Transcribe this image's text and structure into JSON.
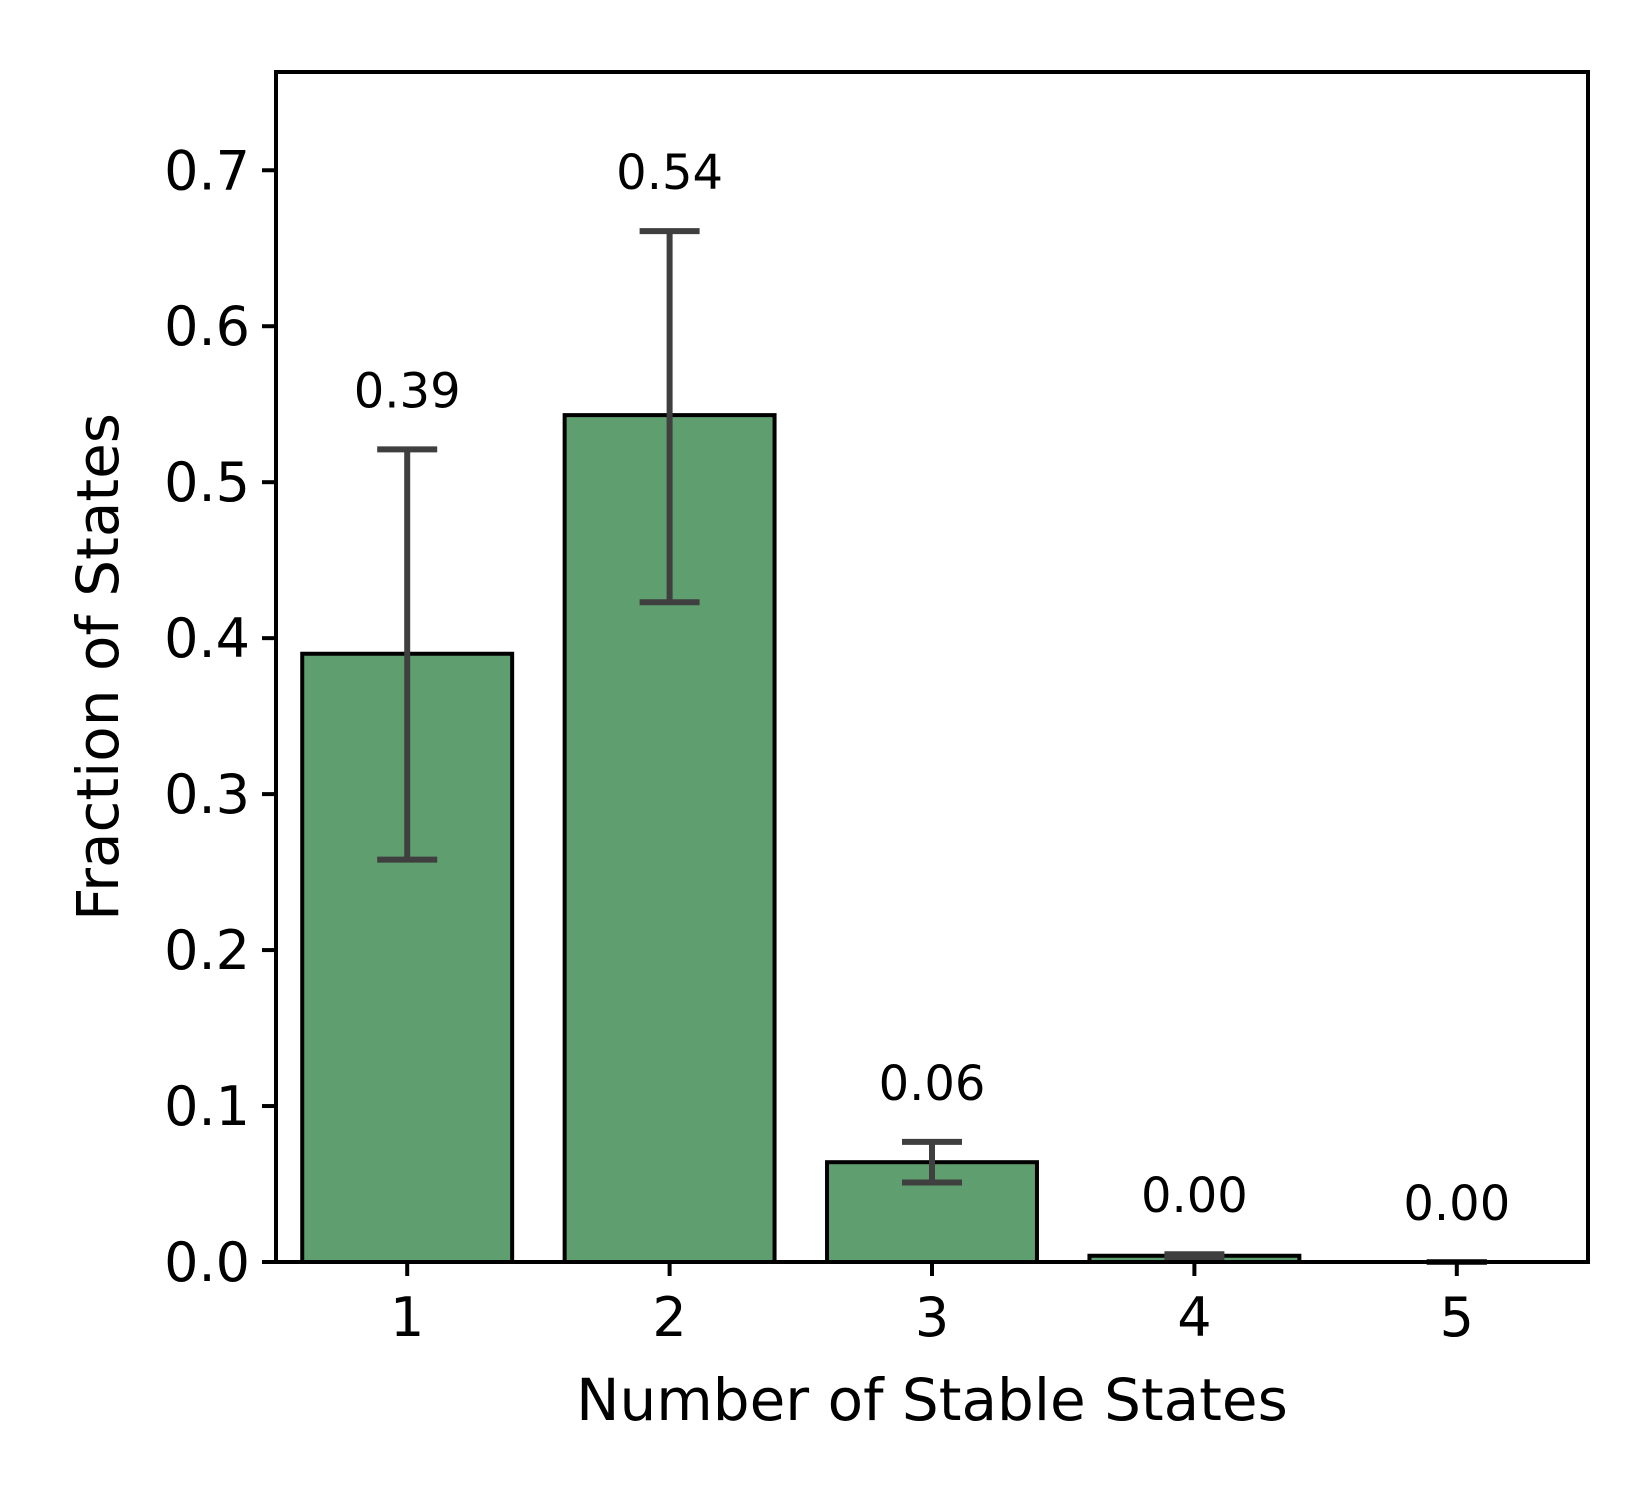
{
  "chart_data": {
    "type": "bar",
    "title": "",
    "xlabel": "Number of Stable States",
    "ylabel": "Fraction of States",
    "categories": [
      "1",
      "2",
      "3",
      "4",
      "5"
    ],
    "values": [
      0.39,
      0.543,
      0.064,
      0.004,
      0.0
    ],
    "error_low": [
      0.258,
      0.423,
      0.051,
      0.003,
      0.0
    ],
    "error_high": [
      0.521,
      0.661,
      0.077,
      0.005,
      0.0
    ],
    "data_labels": [
      "0.39",
      "0.54",
      "0.06",
      "0.00",
      "0.00"
    ],
    "ylim": [
      0,
      0.763
    ],
    "yticks": [
      "0.0",
      "0.1",
      "0.2",
      "0.3",
      "0.4",
      "0.5",
      "0.6",
      "0.7"
    ],
    "grid": false,
    "legend": "none",
    "colors": {
      "bar_fill": "#5f9e6e",
      "bar_edge": "#000000",
      "error_bar": "#3f3f3f",
      "axis": "#000000"
    }
  }
}
